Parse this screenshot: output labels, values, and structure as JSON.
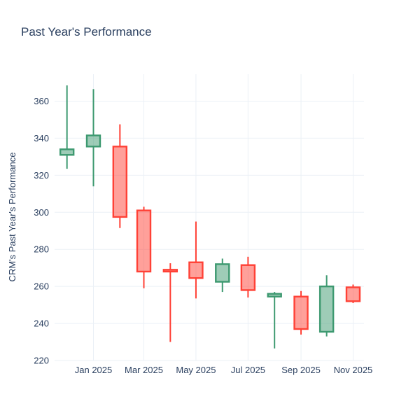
{
  "title": "Past Year's Performance",
  "y_axis": {
    "label": "CRM's Past Year's Performance",
    "ticks": [
      220,
      240,
      260,
      280,
      300,
      320,
      340,
      360
    ]
  },
  "x_axis": {
    "tick_labels": [
      "Jan 2025",
      "Mar 2025",
      "May 2025",
      "Jul 2025",
      "Sep 2025",
      "Nov 2025"
    ]
  },
  "colors": {
    "increasing_line": "#3D9970",
    "increasing_fill": "rgba(61,153,112,0.5)",
    "decreasing_line": "#FF4136",
    "decreasing_fill": "rgba(255,65,54,0.5)",
    "grid": "#EBF0F6",
    "font": "#2a3f5f",
    "background": "#FFFFFF"
  },
  "chart_data": {
    "type": "candlestick",
    "title": "Past Year's Performance",
    "ylabel": "CRM's Past Year's Performance",
    "xlabel": "",
    "grid": true,
    "legend_position": "none",
    "ylim": [
      220,
      374.5
    ],
    "x": [
      "Dec 2024",
      "Jan 2025",
      "Feb 2025",
      "Mar 2025",
      "Apr 2025",
      "May 2025",
      "Jun 2025",
      "Jul 2025",
      "Aug 2025",
      "Sep 2025",
      "Oct 2025",
      "Nov 2025"
    ],
    "series": [
      {
        "name": "CRM",
        "open": [
          331.0,
          335.5,
          335.5,
          301.0,
          269.0,
          273.0,
          262.5,
          271.5,
          254.5,
          254.5,
          235.5,
          259.5
        ],
        "high": [
          368.5,
          366.5,
          347.5,
          303.0,
          272.5,
          295.0,
          275.0,
          276.0,
          257.0,
          257.5,
          266.0,
          261.0
        ],
        "low": [
          323.5,
          314.0,
          291.5,
          259.0,
          230.0,
          253.5,
          257.0,
          254.0,
          226.5,
          234.0,
          233.0,
          251.0
        ],
        "close": [
          334.0,
          341.5,
          297.5,
          268.0,
          268.0,
          264.5,
          272.0,
          258.0,
          256.0,
          237.0,
          260.0,
          252.0
        ]
      }
    ]
  }
}
